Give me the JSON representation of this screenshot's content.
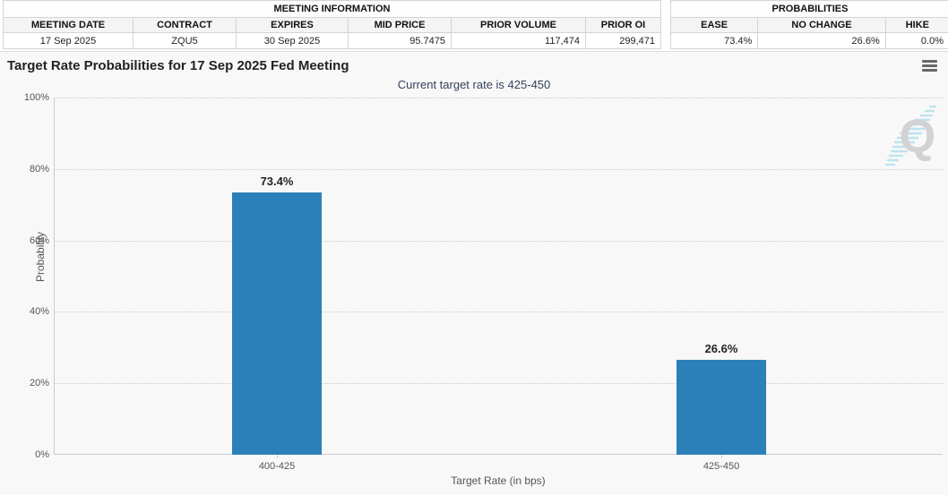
{
  "meeting_info_table": {
    "title": "MEETING INFORMATION",
    "columns": [
      "MEETING DATE",
      "CONTRACT",
      "EXPIRES",
      "MID PRICE",
      "PRIOR VOLUME",
      "PRIOR OI"
    ],
    "values": [
      "17 Sep 2025",
      "ZQU5",
      "30 Sep 2025",
      "95.7475",
      "117,474",
      "299,471"
    ]
  },
  "probabilities_table": {
    "title": "PROBABILITIES",
    "columns": [
      "EASE",
      "NO CHANGE",
      "HIKE"
    ],
    "values": [
      "73.4%",
      "26.6%",
      "0.0%"
    ]
  },
  "chart_data": {
    "type": "bar",
    "title": "Target Rate Probabilities for 17 Sep 2025 Fed Meeting",
    "subtitle": "Current target rate is 425-450",
    "categories": [
      "400-425",
      "425-450"
    ],
    "values": [
      73.4,
      26.6
    ],
    "value_labels": [
      "73.4%",
      "26.6%"
    ],
    "xlabel": "Target Rate (in bps)",
    "ylabel": "Probability",
    "ylim": [
      0,
      100
    ],
    "yticks": [
      0,
      20,
      40,
      60,
      80,
      100
    ],
    "ytick_labels": [
      "0%",
      "20%",
      "40%",
      "60%",
      "80%",
      "100%"
    ],
    "grid": "horizontal-dotted",
    "legend": "none",
    "bar_color": "#2b80b9"
  },
  "icons": {
    "menu_icon": "hamburger-context-menu",
    "watermark_letter": "Q"
  },
  "colors": {
    "bar": "#2b80b9",
    "subtitle_text": "#33425b",
    "chart_background": "#f8f8f8",
    "grid": "#cccccc",
    "watermark_gray": "#cccccc",
    "watermark_blue": "#b5e0ef"
  }
}
